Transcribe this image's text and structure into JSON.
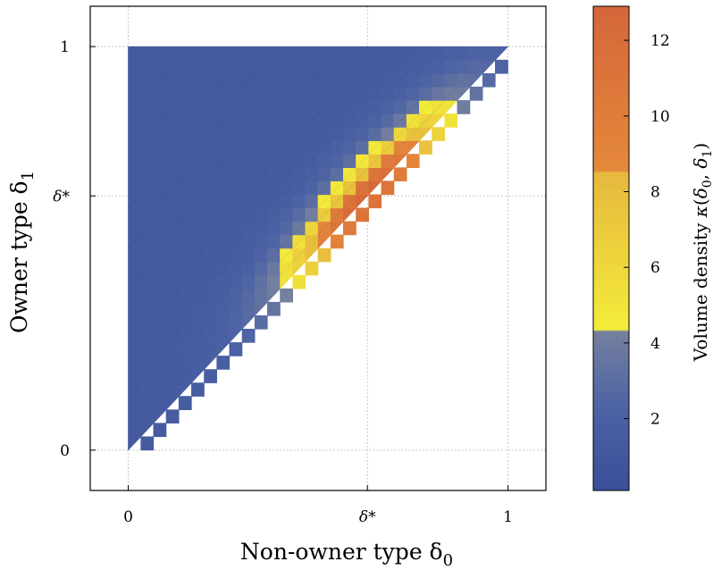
{
  "chart_data": {
    "type": "heatmap",
    "title": "",
    "xlabel": "Non-owner type δ",
    "xlabel_sub": "0",
    "ylabel": "Owner type δ",
    "ylabel_sub": "1",
    "x_ticks": [
      {
        "value": 0,
        "label": "0"
      },
      {
        "value": 0.63,
        "label": "δ*"
      },
      {
        "value": 1,
        "label": "1"
      }
    ],
    "y_ticks": [
      {
        "value": 0,
        "label": "0"
      },
      {
        "value": 0.63,
        "label": "δ*"
      },
      {
        "value": 1,
        "label": "1"
      }
    ],
    "xlim": [
      -0.1,
      1.1
    ],
    "ylim": [
      -0.1,
      1.1
    ],
    "grid": true,
    "domain": "triangle: 0 <= delta0 <= delta1 <= 1",
    "grid_resolution": 30,
    "density_model": {
      "peak_at": [
        0.63,
        0.63
      ],
      "peak_value": 12.9,
      "base_value": 1.3,
      "ridge_along_diagonal": true
    },
    "colorbar": {
      "label": "Volume density κ(δ0, δ1)",
      "label_parts": [
        "Volume density ",
        "κ",
        "(",
        "δ",
        "0",
        ", ",
        "δ",
        "1",
        ")"
      ],
      "min": 0.1,
      "max": 12.9,
      "ticks": [
        2,
        4,
        6,
        8,
        10,
        12
      ],
      "stops": [
        {
          "value": 0.1,
          "color": "#3b4f9a"
        },
        {
          "value": 2.3,
          "color": "#4d63a4"
        },
        {
          "value": 4.3,
          "color": "#75809f"
        },
        {
          "value": 4.35,
          "color": "#f4ec3a"
        },
        {
          "value": 8.5,
          "color": "#e6b83e"
        },
        {
          "value": 8.55,
          "color": "#e5883b"
        },
        {
          "value": 12.9,
          "color": "#d5663a"
        }
      ]
    }
  }
}
